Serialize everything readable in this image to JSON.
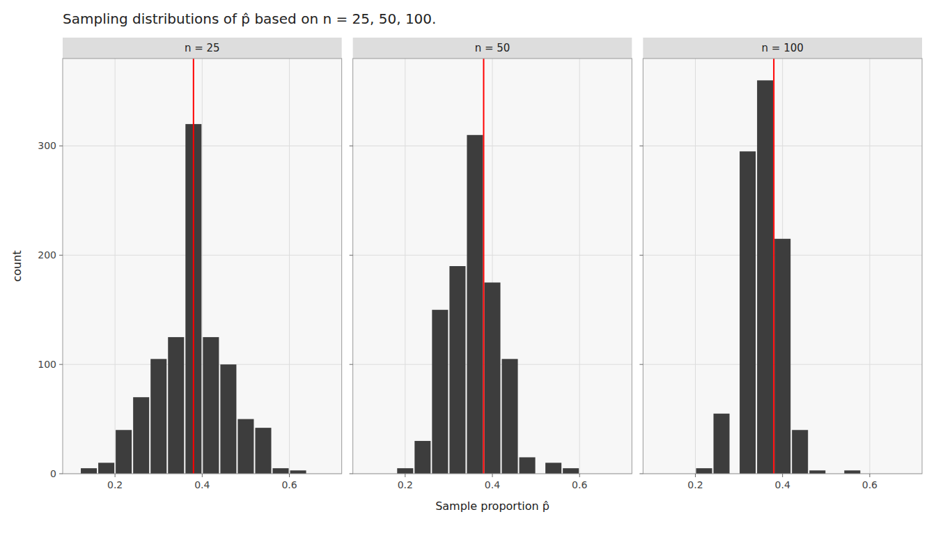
{
  "chart_data": {
    "type": "histogram",
    "title": "Sampling distributions of p̂ based on n = 25, 50, 100.",
    "xlabel": "Sample proportion p̂",
    "ylabel": "count",
    "color": "#3d3d3d",
    "grid": true,
    "xlim": [
      0.08,
      0.72
    ],
    "ylim": [
      0,
      380
    ],
    "xticks": [
      0.2,
      0.4,
      0.6
    ],
    "yticks": [
      0,
      100,
      200,
      300
    ],
    "bin_width": 0.04,
    "reference_line": {
      "x": 0.38,
      "color": "red"
    },
    "series": [
      {
        "name": "n = 25",
        "x": [
          0.12,
          0.16,
          0.2,
          0.24,
          0.28,
          0.32,
          0.36,
          0.4,
          0.44,
          0.48,
          0.52,
          0.56,
          0.6
        ],
        "values": [
          5,
          10,
          40,
          70,
          105,
          125,
          320,
          125,
          100,
          50,
          42,
          5,
          3
        ]
      },
      {
        "name": "n = 50",
        "x": [
          0.18,
          0.22,
          0.26,
          0.3,
          0.34,
          0.38,
          0.42,
          0.46,
          0.52,
          0.56,
          0.6
        ],
        "values": [
          5,
          30,
          150,
          190,
          310,
          175,
          105,
          15,
          10,
          5,
          0
        ]
      },
      {
        "name": "n = 100",
        "x": [
          0.2,
          0.24,
          0.3,
          0.34,
          0.38,
          0.42,
          0.46,
          0.54
        ],
        "values": [
          5,
          55,
          295,
          360,
          215,
          40,
          3,
          3
        ]
      }
    ]
  }
}
